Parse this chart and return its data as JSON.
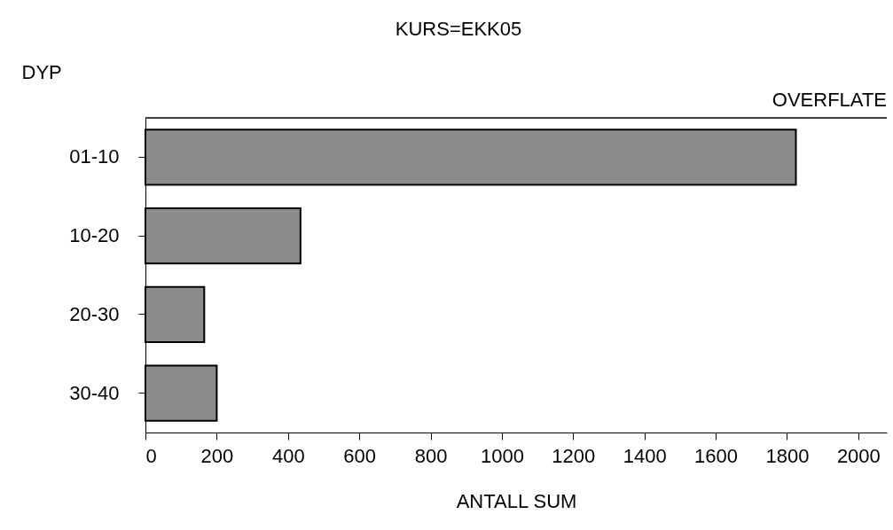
{
  "chart_data": {
    "type": "bar",
    "orientation": "horizontal",
    "title": "KURS=EKK05",
    "xlabel": "ANTALL SUM",
    "ylabel": "DYP",
    "annotations": [
      "OVERFLATE"
    ],
    "categories": [
      "01-10",
      "10-20",
      "20-30",
      "30-40"
    ],
    "values": [
      1825,
      435,
      165,
      200
    ],
    "color": "#8c8c8c",
    "xlim": [
      0,
      2080
    ],
    "xticks": [
      0,
      200,
      400,
      600,
      800,
      1000,
      1200,
      1400,
      1600,
      1800,
      2000
    ],
    "grid": false
  }
}
